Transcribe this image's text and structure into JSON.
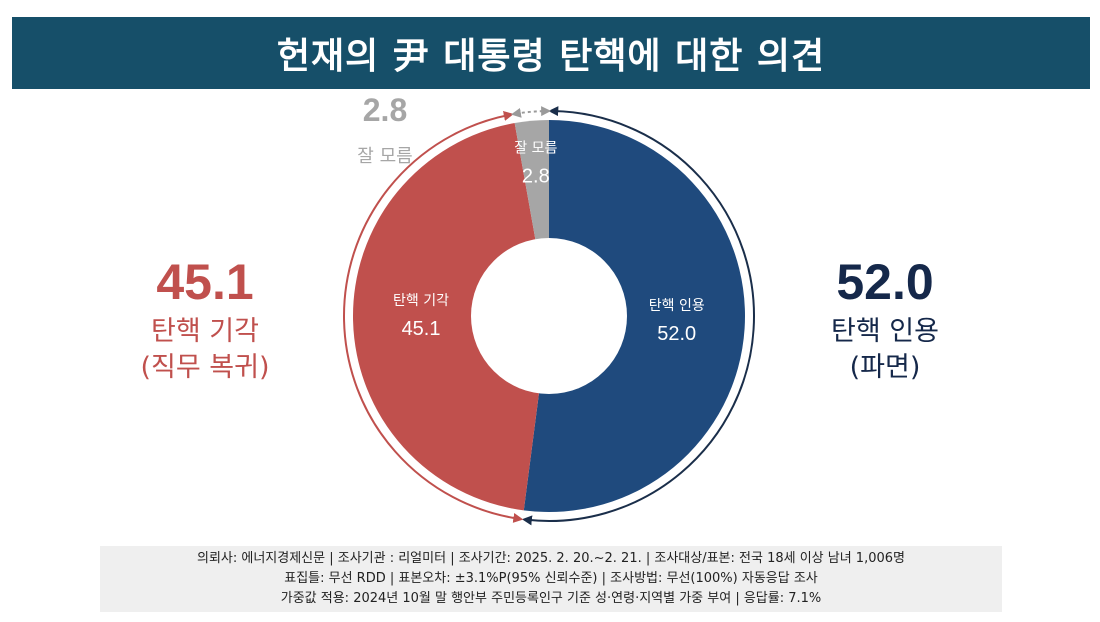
{
  "title": "헌재의 尹 대통령 탄핵에 대한 의견",
  "colors": {
    "title_bg": "#164f69",
    "dismiss": "#c0504d",
    "uphold": "#1f4a7d",
    "unknown": "#a6a6a6"
  },
  "callouts": {
    "dismiss": {
      "value": "45.1",
      "line1": "탄핵 기각",
      "line2": "(직무 복귀)"
    },
    "uphold": {
      "value": "52.0",
      "line1": "탄핵 인용",
      "line2": "(파면)"
    },
    "unknown": {
      "value": "2.8",
      "label": "잘 모름"
    }
  },
  "chart_data": {
    "type": "pie",
    "variant": "donut",
    "slices": [
      {
        "label": "탄핵 인용",
        "value": 52.0,
        "value_text": "52.0",
        "color": "#1f4a7d"
      },
      {
        "label": "탄핵 기각",
        "value": 45.1,
        "value_text": "45.1",
        "color": "#c0504d"
      },
      {
        "label": "잘 모름",
        "value": 2.8,
        "value_text": "2.8",
        "color": "#a6a6a6"
      }
    ]
  },
  "footer": {
    "line1": "의뢰사: 에너지경제신문 | 조사기관 : 리얼미터  |  조사기간: 2025. 2. 20.~2. 21. | 조사대상/표본: 전국 18세 이상 남녀 1,006명",
    "line2": "표집틀: 무선 RDD | 표본오차: ±3.1%P(95% 신뢰수준) | 조사방법: 무선(100%) 자동응답 조사",
    "line3": "가중값 적용: 2024년 10월 말 행안부 주민등록인구 기준 성·연령·지역별 가중 부여 | 응답률: 7.1%"
  }
}
